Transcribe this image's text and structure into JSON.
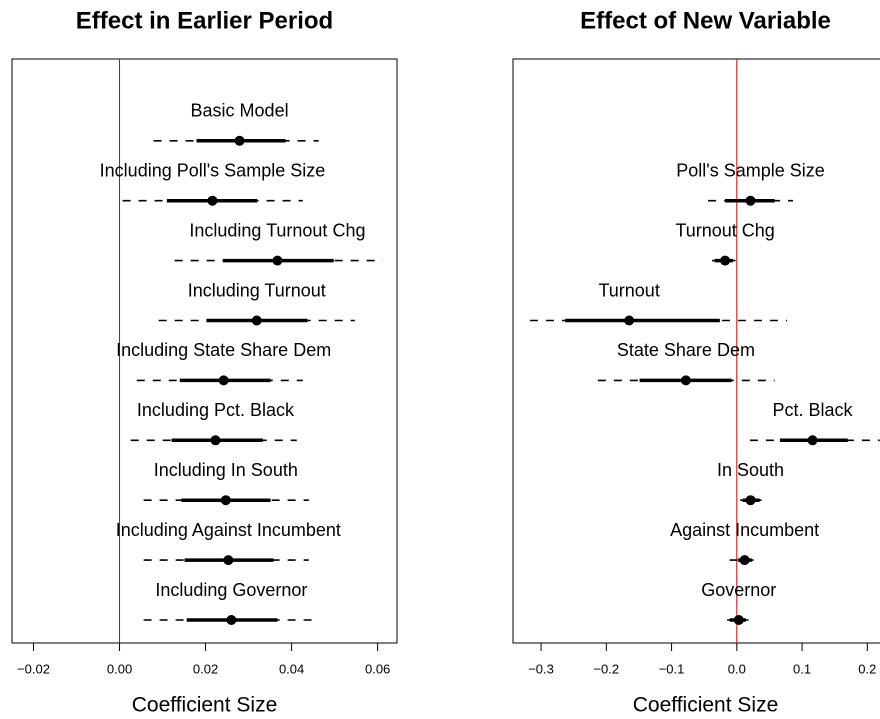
{
  "chart_data": [
    {
      "type": "coefficient",
      "title": "Effect in Earlier Period",
      "xlabel": "Coefficient Size",
      "categories": [
        "Basic Model",
        "Including Poll's Sample Size",
        "Including Turnout Chg",
        "Including Turnout",
        "Including State Share Dem",
        "Including Pct. Black",
        "Including In South",
        "Including Against Incumbent",
        "Including Governor"
      ],
      "values": [
        0.0279,
        0.0216,
        0.0367,
        0.0319,
        0.0242,
        0.0223,
        0.0247,
        0.0253,
        0.026
      ],
      "inner": [
        [
          0.0179,
          0.0386
        ],
        [
          0.011,
          0.032
        ],
        [
          0.024,
          0.0498
        ],
        [
          0.0202,
          0.0437
        ],
        [
          0.014,
          0.0351
        ],
        [
          0.0121,
          0.0333
        ],
        [
          0.0144,
          0.0351
        ],
        [
          0.0151,
          0.0358
        ],
        [
          0.0156,
          0.0367
        ]
      ],
      "outer": [
        [
          0.0079,
          0.0463
        ],
        [
          0.0007,
          0.0426
        ],
        [
          0.0128,
          0.0612
        ],
        [
          0.0091,
          0.0547
        ],
        [
          0.004,
          0.0426
        ],
        [
          0.0026,
          0.0412
        ],
        [
          0.0056,
          0.044
        ],
        [
          0.0056,
          0.044
        ],
        [
          0.0056,
          0.0463
        ]
      ],
      "xlim": [
        -0.025,
        0.0645
      ],
      "xticks": [
        {
          "value": -0.02,
          "label": "−0.02"
        },
        {
          "value": 0,
          "label": "0.00"
        },
        {
          "value": 0.02,
          "label": "0.02"
        },
        {
          "value": 0.04,
          "label": "0.04"
        },
        {
          "value": 0.06,
          "label": "0.06"
        }
      ],
      "ref_line": 0,
      "ref_color": "#cc0000",
      "color": "#000000"
    },
    {
      "type": "coefficient",
      "title": "Effect of New Variable",
      "xlabel": "Coefficient Size",
      "categories": [
        "Poll's Sample Size",
        "Turnout Chg",
        "Turnout",
        "State Share Dem",
        "Pct. Black",
        "In South",
        "Against Incumbent",
        "Governor"
      ],
      "values": [
        0.021,
        -0.018,
        -0.165,
        -0.078,
        0.116,
        0.021,
        0.012,
        0.003
      ],
      "inner": [
        [
          -0.018,
          0.058
        ],
        [
          -0.034,
          -0.006
        ],
        [
          -0.263,
          -0.026
        ],
        [
          -0.149,
          -0.008
        ],
        [
          0.066,
          0.17
        ],
        [
          0.009,
          0.035
        ],
        [
          0.002,
          0.023
        ],
        [
          -0.011,
          0.014
        ]
      ],
      "outer": [
        [
          -0.044,
          0.086
        ],
        [
          -0.038,
          -0.002
        ],
        [
          -0.317,
          0.077
        ],
        [
          -0.213,
          0.058
        ],
        [
          0.02,
          0.219
        ],
        [
          0.005,
          0.038
        ],
        [
          -0.011,
          0.029
        ],
        [
          -0.015,
          0.018
        ]
      ],
      "xlim": [
        -0.343,
        0.247
      ],
      "xticks": [
        {
          "value": -0.3,
          "label": "−0.3"
        },
        {
          "value": -0.2,
          "label": "−0.2"
        },
        {
          "value": -0.1,
          "label": "−0.1"
        },
        {
          "value": 0,
          "label": "0.0"
        },
        {
          "value": 0.1,
          "label": "0.1"
        },
        {
          "value": 0.2,
          "label": "0.2"
        }
      ],
      "ref_line": 0,
      "ref_color": "#cc0000",
      "color": "#000000"
    }
  ]
}
